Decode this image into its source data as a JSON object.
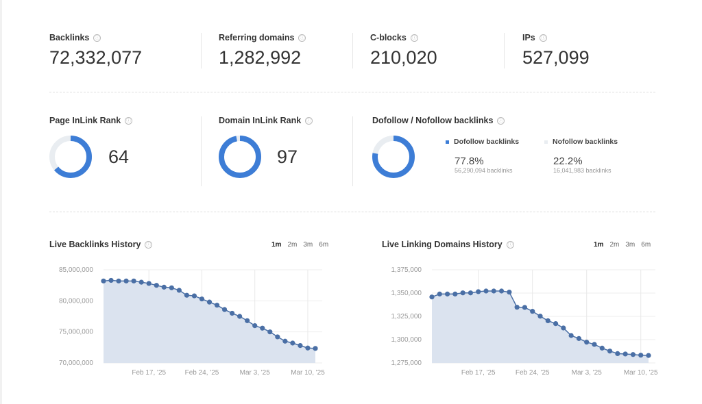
{
  "stats": [
    {
      "label": "Backlinks",
      "value": "72,332,077"
    },
    {
      "label": "Referring domains",
      "value": "1,282,992"
    },
    {
      "label": "C-blocks",
      "value": "210,020"
    },
    {
      "label": "IPs",
      "value": "527,099"
    }
  ],
  "ranks": [
    {
      "label": "Page InLink Rank",
      "value": "64",
      "fill": 0.64
    },
    {
      "label": "Domain InLink Rank",
      "value": "97",
      "fill": 0.97
    }
  ],
  "dofollow": {
    "label": "Dofollow / Nofollow backlinks",
    "fill": 0.778,
    "items": [
      {
        "name": "Dofollow backlinks",
        "pct": "77.8%",
        "count": "56,290,094 backlinks",
        "color": "#3d7dd6"
      },
      {
        "name": "Nofollow backlinks",
        "pct": "22.2%",
        "count": "16,041,983 backlinks",
        "color": "#e9edf1"
      }
    ]
  },
  "info_icon": "ⓘ",
  "colors": {
    "accent": "#3d7dd6",
    "track": "#e9edf1",
    "line": "#4a6fa5",
    "area": "#dbe3ef"
  },
  "ranges": [
    "1m",
    "2m",
    "3m",
    "6m"
  ],
  "chart_data": [
    {
      "type": "area",
      "title": "Live Backlinks History",
      "active_range": "1m",
      "x_start": "2025-02-11",
      "x_step_days": 1,
      "xticks": [
        "Feb 17, '25",
        "Feb 24, '25",
        "Mar 3, '25",
        "Mar 10, '25"
      ],
      "yticks": [
        "85,000,000",
        "80,000,000",
        "75,000,000",
        "70,000,000"
      ],
      "ylim": [
        70000000,
        85000000
      ],
      "grid": true,
      "values": [
        83200000,
        83300000,
        83200000,
        83200000,
        83200000,
        83000000,
        82800000,
        82500000,
        82200000,
        82100000,
        81700000,
        80900000,
        80800000,
        80300000,
        79800000,
        79300000,
        78600000,
        78000000,
        77500000,
        76800000,
        76000000,
        75600000,
        75000000,
        74200000,
        73500000,
        73200000,
        72800000,
        72400000,
        72332077
      ]
    },
    {
      "type": "area",
      "title": "Live Linking Domains History",
      "active_range": "1m",
      "x_start": "2025-02-11",
      "x_step_days": 1,
      "xticks": [
        "Feb 17, '25",
        "Feb 24, '25",
        "Mar 3, '25",
        "Mar 10, '25"
      ],
      "yticks": [
        "1,375,000",
        "1,350,000",
        "1,325,000",
        "1,300,000",
        "1,275,000"
      ],
      "ylim": [
        1275000,
        1375000
      ],
      "grid": true,
      "values": [
        1345800,
        1349000,
        1349000,
        1349000,
        1350200,
        1350200,
        1351500,
        1352200,
        1352200,
        1352200,
        1351000,
        1334800,
        1334600,
        1330400,
        1325200,
        1320300,
        1317200,
        1312500,
        1304400,
        1301200,
        1297300,
        1294900,
        1290900,
        1287700,
        1285000,
        1284600,
        1284000,
        1283300,
        1282992
      ]
    }
  ]
}
